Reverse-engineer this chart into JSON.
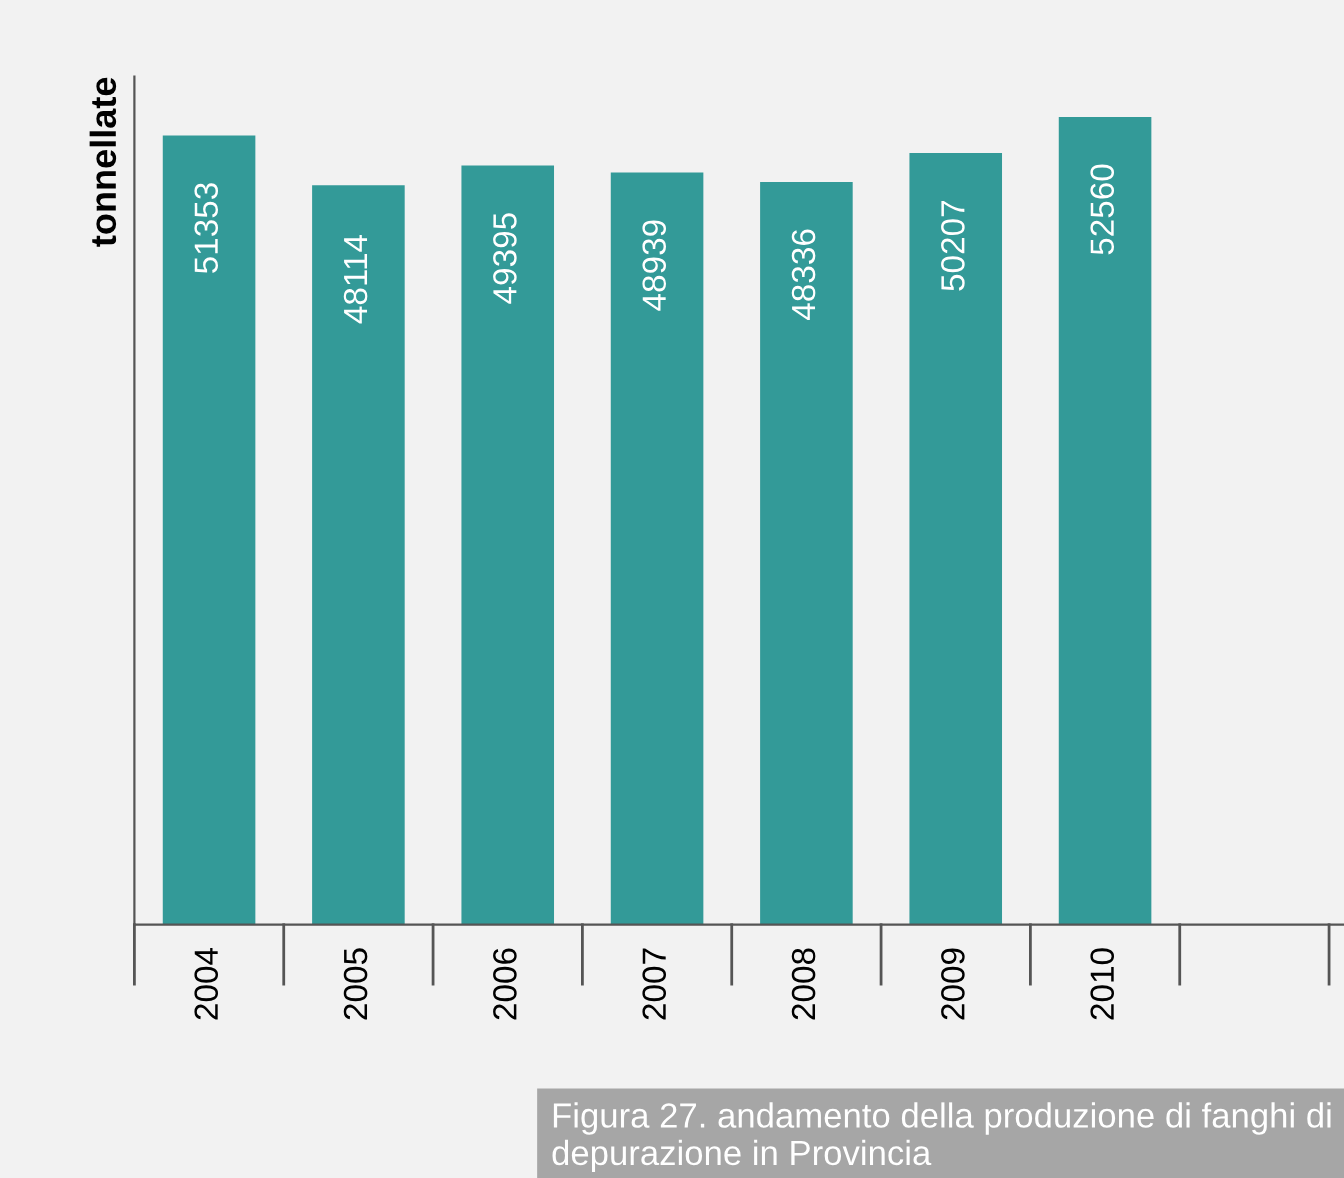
{
  "chart_data": {
    "type": "bar",
    "ylabel": "tonnellate",
    "categories": [
      "2004",
      "2005",
      "2006",
      "2007",
      "2008",
      "2009",
      "2010"
    ],
    "values": [
      51353,
      48114,
      49395,
      48939,
      48336,
      50207,
      52560
    ],
    "color": "#339a98",
    "data_labels": true,
    "tick_labels": "x",
    "grid": false,
    "legend": false,
    "annotations": [
      "Figura 27. andamento della produzione di fanghi di depurazione in Provincia"
    ]
  }
}
